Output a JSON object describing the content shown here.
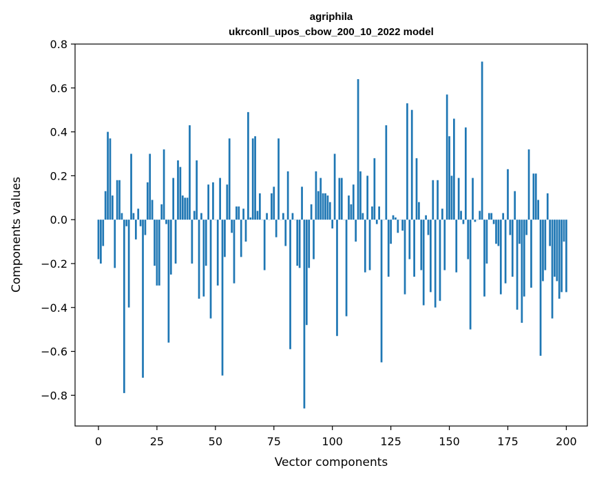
{
  "chart_data": {
    "type": "bar",
    "title_line1": "agriphila",
    "title_line2": "ukrconll_upos_cbow_200_10_2022 model",
    "xlabel": "Vector components",
    "ylabel": "Components values",
    "xlim": [
      -10,
      209
    ],
    "ylim": [
      -0.94,
      0.8
    ],
    "xticks": [
      0,
      25,
      50,
      75,
      100,
      125,
      150,
      175,
      200
    ],
    "xtick_labels": [
      "0",
      "25",
      "50",
      "75",
      "100",
      "125",
      "150",
      "175",
      "200"
    ],
    "yticks": [
      -0.8,
      -0.6,
      -0.4,
      -0.2,
      0.0,
      0.2,
      0.4,
      0.6,
      0.8
    ],
    "ytick_labels": [
      "−0.8",
      "−0.6",
      "−0.4",
      "−0.2",
      "0.0",
      "0.2",
      "0.4",
      "0.6",
      "0.8"
    ],
    "bar_color": "#1f77b4",
    "values": [
      -0.18,
      -0.2,
      -0.12,
      0.13,
      0.4,
      0.37,
      0.11,
      -0.22,
      0.18,
      0.18,
      0.03,
      -0.79,
      -0.03,
      -0.4,
      0.3,
      0.03,
      -0.09,
      0.05,
      -0.03,
      -0.72,
      -0.07,
      0.17,
      0.3,
      0.09,
      -0.21,
      -0.3,
      -0.3,
      0.07,
      0.32,
      -0.02,
      -0.56,
      -0.25,
      0.19,
      -0.2,
      0.27,
      0.24,
      0.11,
      0.1,
      0.1,
      0.43,
      -0.2,
      0.04,
      0.27,
      -0.36,
      0.03,
      -0.35,
      -0.21,
      0.16,
      -0.45,
      0.17,
      0.0,
      -0.3,
      0.19,
      -0.71,
      -0.17,
      0.16,
      0.37,
      -0.06,
      -0.29,
      0.06,
      0.06,
      -0.17,
      0.05,
      -0.1,
      0.49,
      0.01,
      0.37,
      0.38,
      0.04,
      0.12,
      0.0,
      -0.23,
      0.03,
      0.0,
      0.12,
      0.15,
      -0.08,
      0.37,
      0.0,
      0.03,
      -0.12,
      0.22,
      -0.59,
      0.03,
      0.0,
      -0.21,
      -0.22,
      0.15,
      -0.86,
      -0.48,
      -0.22,
      0.07,
      -0.18,
      0.22,
      0.13,
      0.19,
      0.12,
      0.12,
      0.11,
      0.08,
      -0.04,
      0.3,
      -0.53,
      0.19,
      0.19,
      0.0,
      -0.44,
      0.11,
      0.07,
      0.16,
      -0.1,
      0.64,
      0.22,
      0.03,
      -0.24,
      0.2,
      -0.23,
      0.06,
      0.28,
      -0.02,
      0.06,
      -0.65,
      0.0,
      0.43,
      -0.26,
      -0.11,
      0.02,
      0.01,
      -0.06,
      0.0,
      -0.05,
      -0.34,
      0.53,
      -0.18,
      0.5,
      -0.26,
      0.28,
      0.08,
      -0.23,
      -0.39,
      0.02,
      -0.07,
      -0.33,
      0.18,
      -0.4,
      0.18,
      -0.37,
      0.05,
      -0.23,
      0.57,
      0.38,
      0.2,
      0.46,
      -0.24,
      0.19,
      0.04,
      -0.02,
      0.42,
      -0.18,
      -0.5,
      0.19,
      -0.01,
      0.0,
      0.04,
      0.72,
      -0.35,
      -0.2,
      0.03,
      0.03,
      -0.02,
      -0.11,
      -0.12,
      -0.34,
      0.03,
      -0.29,
      0.23,
      -0.07,
      -0.26,
      0.13,
      -0.41,
      -0.11,
      -0.47,
      -0.35,
      -0.07,
      0.32,
      -0.31,
      0.21,
      0.21,
      0.09,
      -0.62,
      -0.28,
      -0.23,
      0.12,
      -0.12,
      -0.45,
      -0.26,
      -0.28,
      -0.36,
      -0.33,
      -0.1,
      -0.33
    ]
  }
}
